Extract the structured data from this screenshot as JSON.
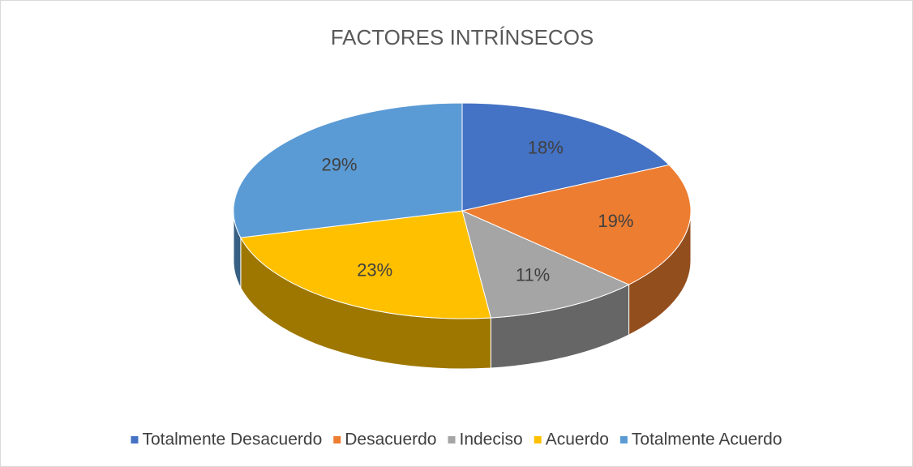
{
  "chart_data": {
    "type": "pie",
    "title": "FACTORES INTRÍNSECOS",
    "categories": [
      "Totalmente Desacuerdo",
      "Desacuerdo",
      "Indeciso",
      "Acuerdo",
      "Totalmente Acuerdo"
    ],
    "values": [
      18,
      19,
      11,
      23,
      29
    ],
    "value_labels": [
      "18%",
      "19%",
      "11%",
      "23%",
      "29%"
    ],
    "colors": [
      "#4472c4",
      "#ed7d31",
      "#a5a5a5",
      "#ffc000",
      "#5b9bd5"
    ],
    "legend": "bottom"
  }
}
